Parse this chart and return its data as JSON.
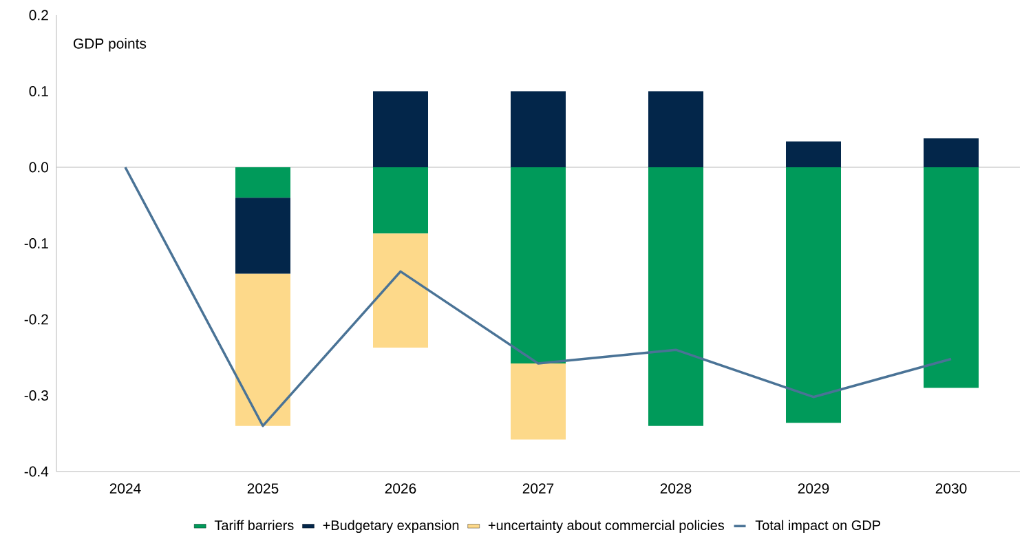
{
  "chart_data": {
    "type": "bar",
    "stacked": true,
    "ylabel": "GDP points",
    "categories": [
      "2024",
      "2025",
      "2026",
      "2027",
      "2028",
      "2029",
      "2030"
    ],
    "series": [
      {
        "name": "Tariff barriers",
        "color": "#009a5a",
        "values": [
          0,
          -0.04,
          -0.087,
          -0.258,
          -0.34,
          -0.336,
          -0.29
        ]
      },
      {
        "name": "+Budgetary expansion",
        "color": "#03264a",
        "values": [
          0,
          -0.1,
          0.1,
          0.1,
          0.1,
          0.034,
          0.038
        ]
      },
      {
        "name": "+uncertainty about commercial policies",
        "color": "#fdd98a",
        "values": [
          0,
          -0.2,
          -0.15,
          -0.1,
          0,
          0,
          0
        ]
      },
      {
        "name": "Total impact on GDP",
        "type": "line",
        "color": "#4a7396",
        "values": [
          0,
          -0.34,
          -0.137,
          -0.258,
          -0.24,
          -0.302,
          -0.252
        ]
      }
    ],
    "ylim": [
      -0.4,
      0.2
    ],
    "yticks": [
      -0.4,
      -0.3,
      -0.2,
      -0.1,
      {
        "value": 0,
        "label": "0.0"
      },
      0.1,
      0.2
    ],
    "ref_lines": [
      {
        "axis": "y",
        "value": 0,
        "color": "#a6a6a6"
      }
    ],
    "legend": "bottom",
    "grid": false
  }
}
